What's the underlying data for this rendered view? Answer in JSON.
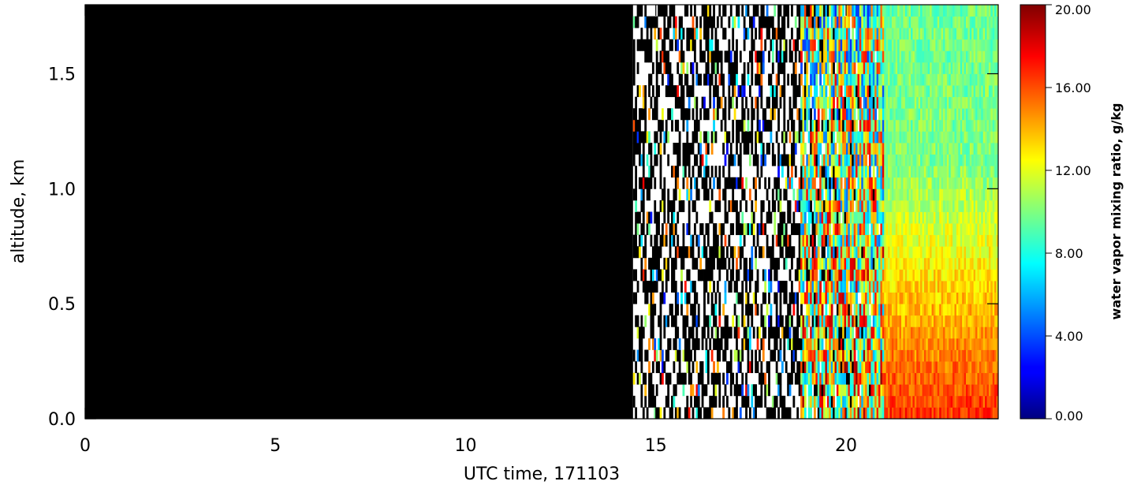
{
  "chart_data": {
    "type": "heatmap",
    "title": "",
    "xlabel": "UTC time, 171103",
    "ylabel": "altitude, km",
    "xlim": [
      0,
      24
    ],
    "ylim": [
      0,
      1.8
    ],
    "x_ticks": [
      0,
      5,
      10,
      15,
      20
    ],
    "x_tick_labels": [
      "0",
      "5",
      "10",
      "15",
      "20"
    ],
    "y_ticks": [
      0.0,
      0.5,
      1.0,
      1.5
    ],
    "y_tick_labels": [
      "0.0",
      "0.5",
      "1.0",
      "1.5"
    ],
    "no_data_until_hour": 14.4,
    "regions": [
      {
        "x_range": [
          0,
          14.4
        ],
        "description": "no data (black)"
      },
      {
        "x_range": [
          14.4,
          18.8
        ],
        "description": "sparse data, mostly missing"
      },
      {
        "x_range": [
          18.8,
          21.0
        ],
        "description": "noisy values 2-18 g/kg"
      },
      {
        "x_range": [
          21.0,
          24.0
        ],
        "description": "surface 14-17 g/kg decreasing to 10-11 g/kg aloft"
      }
    ],
    "colorbar": {
      "label": "water vapor mixing ratio, g/kg",
      "range": [
        0,
        20
      ],
      "colormap": "jet",
      "ticks": [
        0,
        4,
        8,
        12,
        16,
        20
      ],
      "tick_labels": [
        "0.00",
        "4.00",
        "8.00",
        "12.00",
        "16.00",
        "20.00"
      ]
    }
  }
}
